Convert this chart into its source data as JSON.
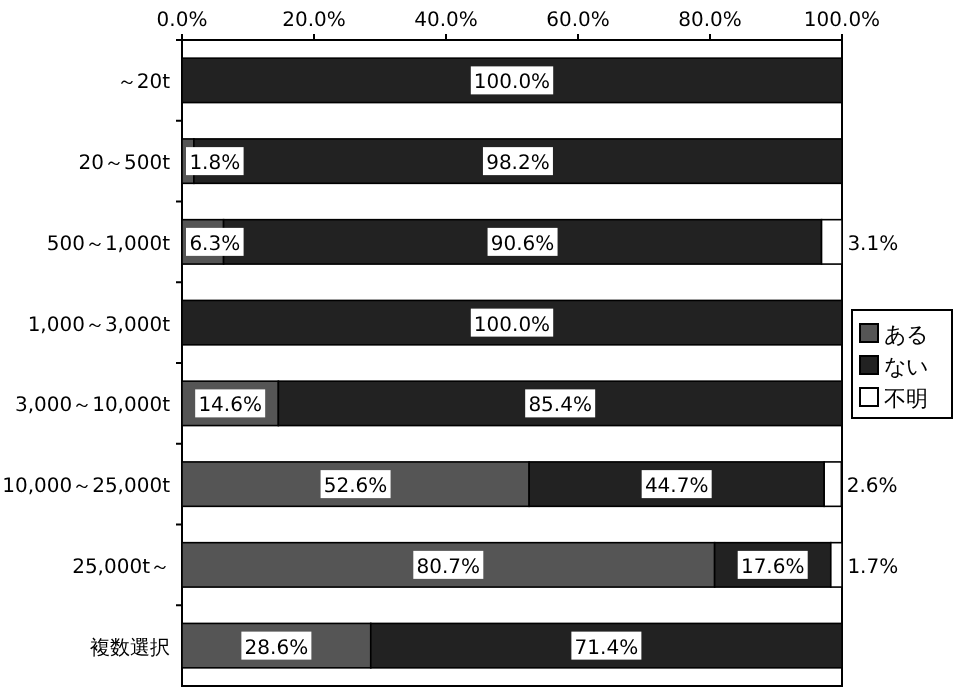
{
  "chart_data": {
    "type": "bar",
    "orientation": "horizontal",
    "stacked": true,
    "categories": [
      "～20t",
      "20～500t",
      "500～1,000t",
      "1,000～3,000t",
      "3,000～10,000t",
      "10,000～25,000t",
      "25,000t～",
      "複数選択"
    ],
    "series": [
      {
        "name": "ある",
        "color": "#555555",
        "values": [
          0,
          1.8,
          6.3,
          0,
          14.6,
          52.6,
          80.7,
          28.6
        ],
        "value_labels": [
          null,
          "1.8%",
          "6.3%",
          null,
          "14.6%",
          "52.6%",
          "80.7%",
          "28.6%"
        ]
      },
      {
        "name": "ない",
        "color": "#222222",
        "values": [
          100,
          98.2,
          90.6,
          100,
          85.4,
          44.7,
          17.6,
          71.4
        ],
        "value_labels": [
          "100.0%",
          "98.2%",
          "90.6%",
          "100.0%",
          "85.4%",
          "44.7%",
          "17.6%",
          "71.4%"
        ]
      },
      {
        "name": "不明",
        "color": "#ffffff",
        "values": [
          0,
          0,
          3.1,
          0,
          0,
          2.6,
          1.7,
          0
        ],
        "value_labels": [
          null,
          null,
          "3.1%",
          null,
          null,
          "2.6%",
          "1.7%",
          null
        ]
      }
    ],
    "xlim": [
      0,
      100
    ],
    "xticks": [
      {
        "value": 0,
        "label": "0.0%"
      },
      {
        "value": 20,
        "label": "20.0%"
      },
      {
        "value": 40,
        "label": "40.0%"
      },
      {
        "value": 60,
        "label": "60.0%"
      },
      {
        "value": 80,
        "label": "80.0%"
      },
      {
        "value": 100,
        "label": "100.0%"
      }
    ],
    "legend": "right",
    "grid": false
  }
}
